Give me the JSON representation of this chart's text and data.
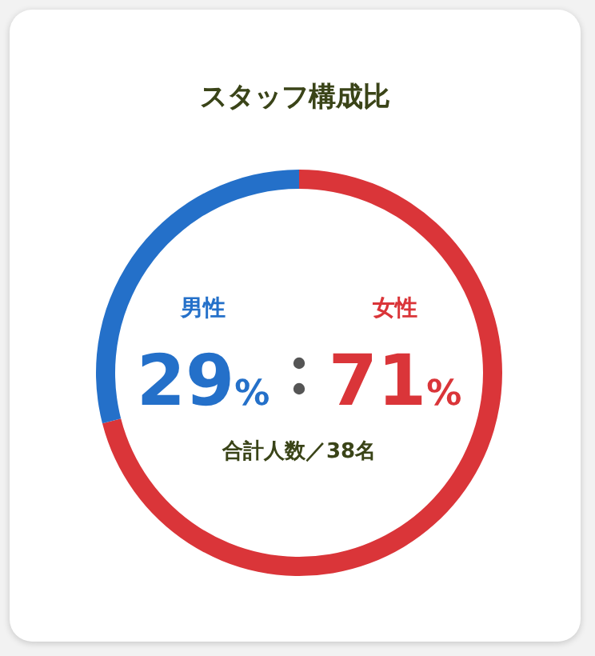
{
  "chart_data": {
    "type": "donut",
    "title": "スタッフ構成比",
    "categories": [
      "男性",
      "女性"
    ],
    "values": [
      29,
      71
    ],
    "colors": [
      "#2470c9",
      "#da3539"
    ],
    "value_labels": [
      "29%",
      "71%"
    ],
    "annotations": [
      "合計人数／38名"
    ]
  }
}
